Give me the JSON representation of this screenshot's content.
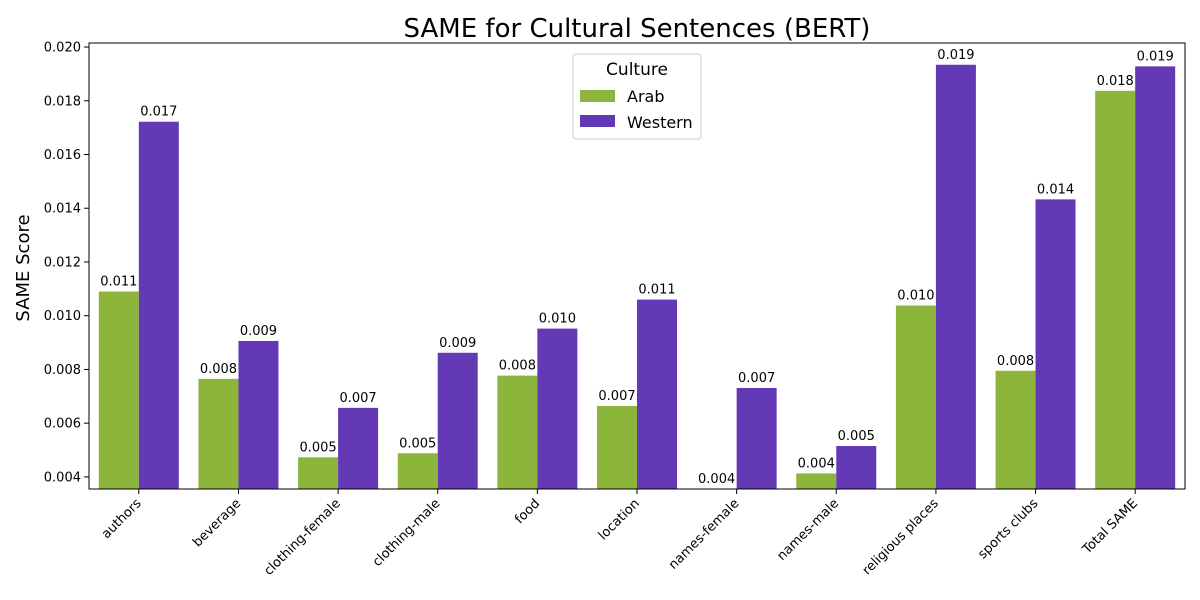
{
  "chart_data": {
    "type": "bar",
    "title": "SAME for Cultural Sentences (BERT)",
    "xlabel": "",
    "ylabel": "SAME Score",
    "categories": [
      "authors",
      "beverage",
      "clothing-female",
      "clothing-male",
      "food",
      "location",
      "names-female",
      "names-male",
      "religious places",
      "sports clubs",
      "Total SAME"
    ],
    "series": [
      {
        "name": "Arab",
        "color": "#8db53c",
        "values": [
          0.0109,
          0.00765,
          0.00473,
          0.00488,
          0.00777,
          0.00664,
          0.00355,
          0.00413,
          0.01038,
          0.00795,
          0.01837
        ],
        "labels": [
          "0.011",
          "0.008",
          "0.005",
          "0.005",
          "0.008",
          "0.007",
          "0.004",
          "0.004",
          "0.010",
          "0.008",
          "0.018"
        ]
      },
      {
        "name": "Western",
        "color": "#6439b6",
        "values": [
          0.01722,
          0.00906,
          0.00657,
          0.00862,
          0.00952,
          0.0106,
          0.00731,
          0.00515,
          0.01934,
          0.01433,
          0.01928
        ],
        "labels": [
          "0.017",
          "0.009",
          "0.007",
          "0.009",
          "0.010",
          "0.011",
          "0.007",
          "0.005",
          "0.019",
          "0.014",
          "0.019"
        ]
      }
    ],
    "yticks": [
      "0.004",
      "0.006",
      "0.008",
      "0.010",
      "0.012",
      "0.014",
      "0.016",
      "0.018",
      "0.020"
    ],
    "ylim": [
      0.00355,
      0.02015
    ],
    "legend": {
      "title": "Culture",
      "placement": "top-center"
    },
    "grid": false
  }
}
